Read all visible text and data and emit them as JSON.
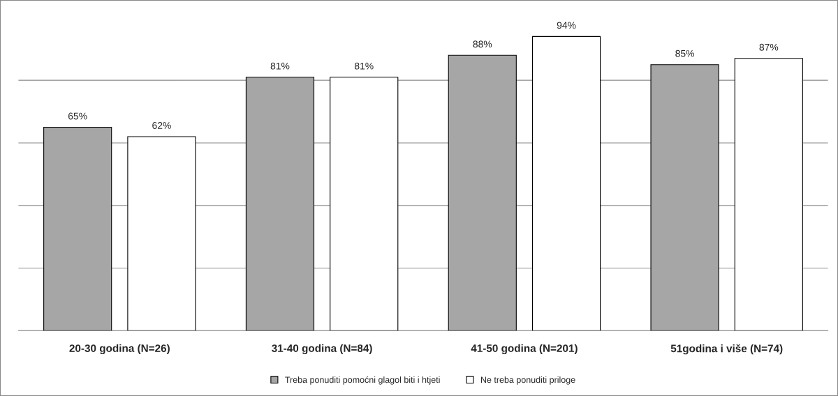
{
  "chart_data": {
    "type": "bar",
    "categories": [
      "20-30 godina (N=26)",
      "31-40 godina (N=84)",
      "41-50 godina (N=201)",
      "51godina i više (N=74)"
    ],
    "series": [
      {
        "name": "Treba ponuditi pomoćni glagol biti i htjeti",
        "color": "#a6a6a6",
        "values": [
          65,
          81,
          88,
          85
        ],
        "value_labels": [
          "65%",
          "81%",
          "88%",
          "85%"
        ]
      },
      {
        "name": "Ne treba ponuditi priloge",
        "color": "#ffffff",
        "values": [
          62,
          81,
          94,
          87
        ],
        "value_labels": [
          "62%",
          "81%",
          "94%",
          "87%"
        ]
      }
    ],
    "tick_labels": "x",
    "grid": "y",
    "legend": "bottom"
  }
}
